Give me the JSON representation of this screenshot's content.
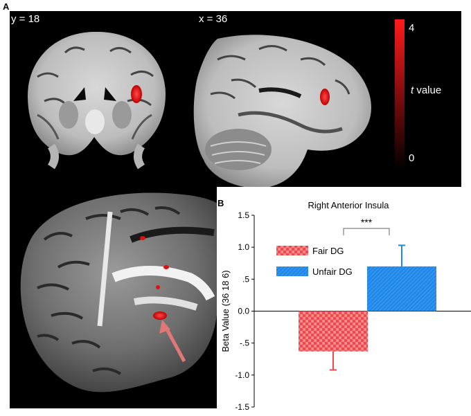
{
  "figure": {
    "panel_a_label": "A",
    "panel_b_label": "B",
    "coronal_label": "y = 18",
    "sagittal_label": "x = 36",
    "colorbar": {
      "max_label": "4",
      "min_label": "0",
      "title_italic": "t",
      "title_rest": " value",
      "color_high": "#ff1a1a",
      "color_low": "#000000"
    },
    "activation_color": "#ff1010"
  },
  "chart_data": {
    "type": "bar",
    "title": "Right Anterior Insula",
    "ylabel": "Beta Value (36 18 6)",
    "xlabel": "",
    "ylim": [
      -1.5,
      1.5
    ],
    "yticks": [
      1.5,
      1.0,
      0.5,
      0.0,
      -0.5,
      -1.0,
      -1.5
    ],
    "ytick_labels": [
      "1.5",
      "1.0",
      ".5",
      "0.0",
      "-.5",
      "-1.0",
      "-1.5"
    ],
    "grid": false,
    "legend_position": "top-left",
    "significance": "***",
    "series": [
      {
        "name": "Fair DG",
        "value": -0.63,
        "error": 0.29,
        "color": "#f0484c",
        "pattern": "checkered"
      },
      {
        "name": "Unfair DG",
        "value": 0.7,
        "error": 0.33,
        "color": "#1f88e8",
        "pattern": "hatched"
      }
    ]
  }
}
